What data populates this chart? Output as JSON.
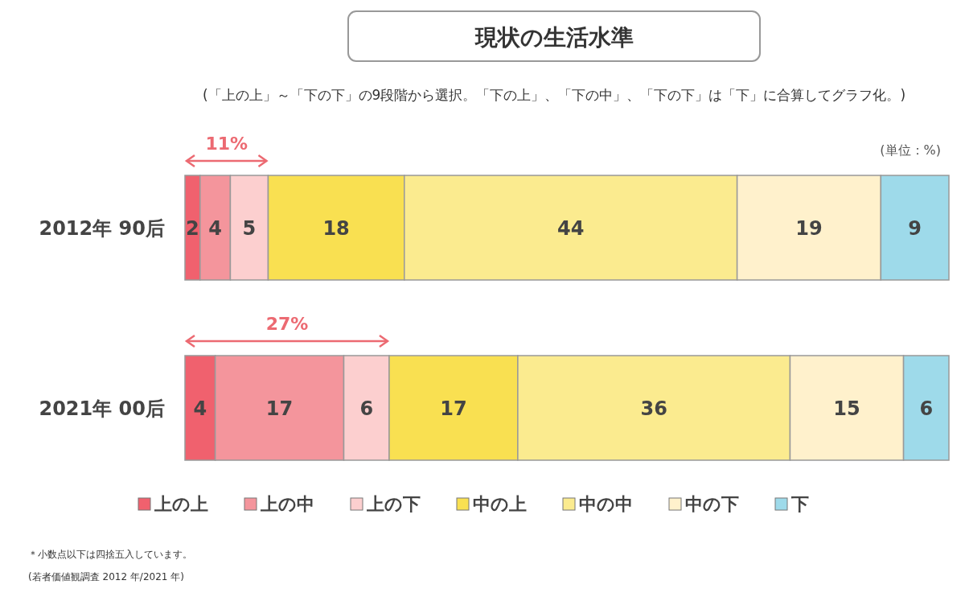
{
  "chart_data": {
    "type": "bar",
    "orientation": "horizontal",
    "stacked": true,
    "data_labels": true,
    "legend": "bottom",
    "title": "現状の生活水準",
    "subtitle": "(「上の上」～「下の下」の9段階から選択。「下の上」、「下の中」、「下の下」は「下」に合算してグラフ化。)",
    "categories": [
      "2012年 90后",
      "2021年 00后"
    ],
    "series": [
      {
        "name": "上の上",
        "color": "#f0616e",
        "values": [
          2,
          4
        ]
      },
      {
        "name": "上の中",
        "color": "#f4959c",
        "values": [
          4,
          17
        ]
      },
      {
        "name": "上の下",
        "color": "#fccfcf",
        "values": [
          5,
          6
        ]
      },
      {
        "name": "中の上",
        "color": "#f9e051",
        "values": [
          18,
          17
        ]
      },
      {
        "name": "中の中",
        "color": "#fbeb8f",
        "values": [
          44,
          36
        ]
      },
      {
        "name": "中の下",
        "color": "#fff1cc",
        "values": [
          19,
          15
        ]
      },
      {
        "name": "下",
        "color": "#9edaea",
        "values": [
          9,
          6
        ]
      }
    ],
    "annotations": [
      "11%",
      "27%",
      "(単位：%)",
      "＊小数点以下は四捨五入しています。",
      "(若者価値観調査 2012 年/2021 年)"
    ]
  }
}
